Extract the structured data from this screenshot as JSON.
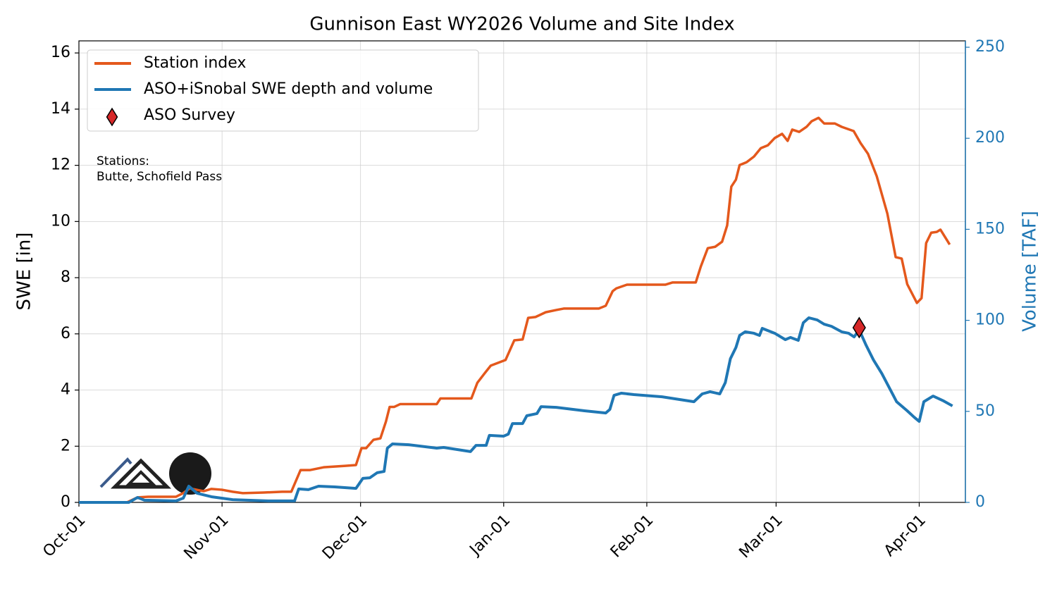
{
  "chart_data": {
    "type": "line",
    "title": "Gunnison East WY2026 Volume and Site Index",
    "ylabel": "SWE [in]",
    "y2label": "Volume [TAF]",
    "y2color": "#1f77b4",
    "annotation": [
      "Stations:",
      "Butte, Schofield Pass"
    ],
    "xlim": [
      0,
      192
    ],
    "xticks": [
      {
        "value": 0,
        "label": "Oct-01"
      },
      {
        "value": 31,
        "label": "Nov-01"
      },
      {
        "value": 61,
        "label": "Dec-01"
      },
      {
        "value": 92,
        "label": "Jan-01"
      },
      {
        "value": 123,
        "label": "Feb-01"
      },
      {
        "value": 151,
        "label": "Mar-01"
      },
      {
        "value": 182,
        "label": "Apr-01"
      }
    ],
    "ylim": [
      0,
      16.43
    ],
    "yticks": [
      0,
      2,
      4,
      6,
      8,
      10,
      12,
      14,
      16
    ],
    "y2lim": [
      0,
      253.5
    ],
    "y2ticks": [
      0,
      50,
      100,
      150,
      200,
      250
    ],
    "grid": true,
    "legend": "upper left",
    "series": [
      {
        "name": "Station index",
        "color": "#e4581c",
        "axis": "y",
        "x": [
          0,
          10.4,
          12.7,
          15,
          21,
          22.6,
          24,
          27,
          28.7,
          31,
          33.3,
          35.5,
          40,
          44,
          46,
          48,
          50,
          53,
          57.7,
          60,
          61.2,
          62.2,
          63.8,
          65.3,
          66.5,
          67.3,
          68.3,
          69.6,
          77.5,
          78.3,
          85,
          86.3,
          87.9,
          89.2,
          92.4,
          94.3,
          96.1,
          97.3,
          98.9,
          101.1,
          103.4,
          105,
          112.6,
          114.1,
          115.6,
          116.4,
          118.7,
          120.2,
          127,
          128.6,
          133.6,
          134.7,
          136.2,
          137.8,
          139.3,
          140.4,
          141.3,
          142.3,
          143.1,
          144.6,
          146.2,
          147.7,
          149.2,
          150.7,
          152.3,
          153.5,
          154.5,
          156,
          157.6,
          158.7,
          160.2,
          161.4,
          163.7,
          165.2,
          167.8,
          169.3,
          170.9,
          172.8,
          175.1,
          176.9,
          178.2,
          179.4,
          181.5,
          182.5,
          183.5,
          184.6,
          185.8,
          186.6,
          188.6
        ],
        "values": [
          0,
          0,
          0.18,
          0.2,
          0.2,
          0.33,
          0.5,
          0.4,
          0.48,
          0.45,
          0.38,
          0.33,
          0.35,
          0.38,
          0.38,
          1.15,
          1.15,
          1.25,
          1.3,
          1.33,
          1.93,
          1.93,
          2.23,
          2.28,
          2.88,
          3.4,
          3.4,
          3.5,
          3.5,
          3.7,
          3.7,
          4.26,
          4.6,
          4.87,
          5.07,
          5.77,
          5.8,
          6.57,
          6.6,
          6.77,
          6.85,
          6.9,
          6.9,
          7.0,
          7.52,
          7.62,
          7.75,
          7.75,
          7.75,
          7.83,
          7.83,
          8.4,
          9.05,
          9.1,
          9.28,
          9.86,
          11.24,
          11.49,
          12.01,
          12.11,
          12.31,
          12.61,
          12.71,
          12.97,
          13.12,
          12.87,
          13.27,
          13.19,
          13.37,
          13.57,
          13.69,
          13.49,
          13.49,
          13.37,
          13.22,
          12.79,
          12.41,
          11.61,
          10.28,
          8.73,
          8.68,
          7.77,
          7.1,
          7.27,
          9.23,
          9.6,
          9.63,
          9.71,
          9.18
        ]
      },
      {
        "name": "ASO+iSnobal SWE depth and volume",
        "color": "#1f77b4",
        "axis": "y2",
        "x": [
          0,
          10.8,
          12.7,
          14.2,
          21,
          22.6,
          23.8,
          25.6,
          28.7,
          33.3,
          41,
          46.7,
          47.6,
          49.7,
          51.9,
          55.4,
          60,
          61.5,
          63,
          64.6,
          66.1,
          66.8,
          67.9,
          71.4,
          77.5,
          79,
          84.8,
          86,
          88.2,
          88.9,
          92,
          93,
          93.9,
          96.1,
          97,
          99.2,
          100.1,
          103.4,
          109.5,
          114.1,
          115,
          115.9,
          117.5,
          120.2,
          126.3,
          133.2,
          135,
          136.7,
          138.8,
          140,
          141.1,
          142.3,
          143.1,
          144.3,
          146.2,
          147.4,
          148,
          150.7,
          153,
          154.1,
          155.8,
          156.9,
          158.1,
          159.9,
          161.4,
          163,
          165.2,
          166.7,
          167.9,
          169,
          170.5,
          172.1,
          173.9,
          175.1,
          177.1,
          179.4,
          180.9,
          182,
          183,
          185,
          187.3,
          189.2
        ],
        "values": [
          0,
          0,
          2.7,
          1.2,
          0.8,
          2.3,
          8.9,
          5,
          3.1,
          1.5,
          0.8,
          0.8,
          7.4,
          7,
          8.9,
          8.5,
          7.7,
          13.2,
          13.5,
          16.3,
          17,
          29.8,
          32.1,
          31.7,
          29.8,
          30.2,
          27.9,
          31.3,
          31.3,
          36.8,
          36.4,
          37.5,
          43.3,
          43.3,
          47.6,
          48.8,
          52.6,
          52.2,
          50.3,
          49.1,
          51.1,
          58.8,
          60,
          59.2,
          58,
          55.3,
          59.6,
          60.8,
          59.6,
          65.8,
          78.9,
          85.1,
          91.7,
          93.7,
          92.9,
          91.7,
          95.6,
          92.9,
          89.4,
          90.6,
          89,
          98.7,
          101.4,
          100.2,
          97.9,
          96.7,
          93.7,
          92.9,
          90.9,
          94.8,
          86.3,
          78.2,
          70.8,
          65,
          55.3,
          50.3,
          46.8,
          44.5,
          55.3,
          58.4,
          55.7,
          53
        ]
      },
      {
        "name": "ASO Survey",
        "color": "#d62728",
        "axis": "y2",
        "marker": "diamond",
        "x": [
          169
        ],
        "values": [
          96
        ]
      }
    ]
  }
}
